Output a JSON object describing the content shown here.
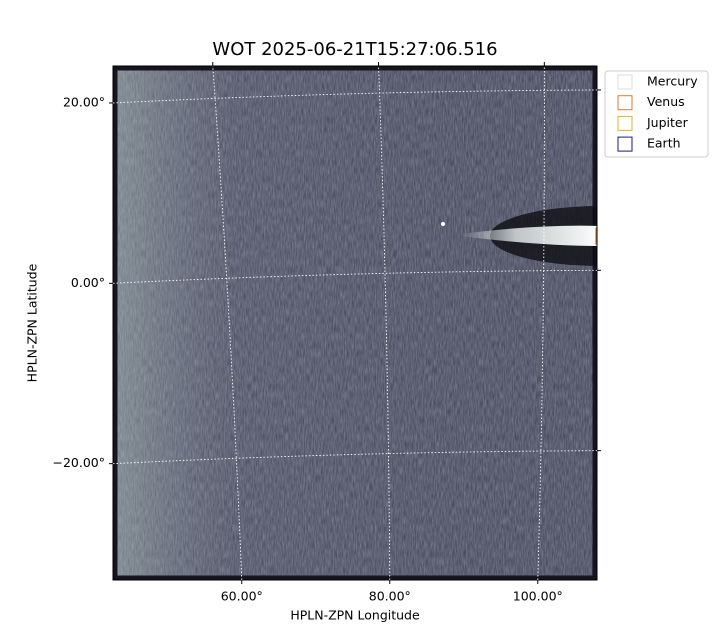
{
  "chart_data": {
    "type": "image",
    "title": "WOT 2025-06-21T15:27:06.516",
    "xlabel": "HPLN-ZPN Longitude",
    "ylabel": "HPLN-ZPN Latitude",
    "xlim": [
      42.6,
      108.0
    ],
    "ylim": [
      -32.9,
      24.1
    ],
    "xticks": [
      {
        "value": 60,
        "label": "60.00°"
      },
      {
        "value": 80,
        "label": "80.00°"
      },
      {
        "value": 100,
        "label": "100.00°"
      }
    ],
    "yticks": [
      {
        "value": -20,
        "label": "−20.00°"
      },
      {
        "value": 0,
        "label": "0.00°"
      },
      {
        "value": 20,
        "label": "20.00°"
      }
    ],
    "grid": true,
    "legend_position": "outside-upper-right",
    "series": [
      {
        "name": "Mercury",
        "color": "#dddddd"
      },
      {
        "name": "Venus",
        "color": "#e07a30"
      },
      {
        "name": "Jupiter",
        "color": "#e0b030"
      },
      {
        "name": "Earth",
        "color": "#1a1a80"
      }
    ]
  }
}
